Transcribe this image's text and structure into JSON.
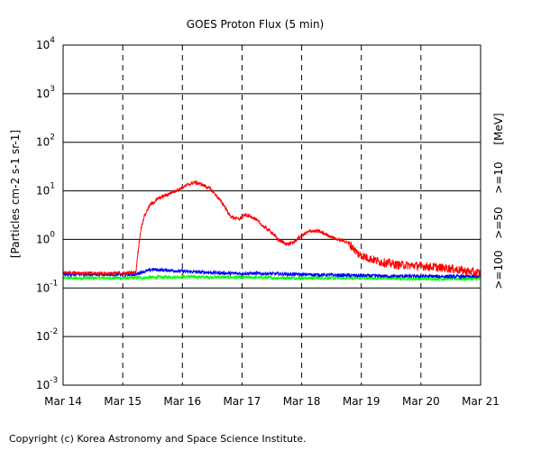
{
  "chart_data": {
    "type": "line",
    "title": "GOES Proton Flux (5 min)",
    "ylabel": "[Particles cm-2 s-1 sr-1]",
    "unit_label": "[MeV]",
    "y_scale": "log",
    "ylim": [
      0.001,
      10000
    ],
    "y_ticks": [
      {
        "base": "10",
        "exp": "4",
        "value": 10000
      },
      {
        "base": "10",
        "exp": "3",
        "value": 1000
      },
      {
        "base": "10",
        "exp": "2",
        "value": 100
      },
      {
        "base": "10",
        "exp": "1",
        "value": 10
      },
      {
        "base": "10",
        "exp": "0",
        "value": 1
      },
      {
        "base": "10",
        "exp": "-1",
        "value": 0.1
      },
      {
        "base": "10",
        "exp": "-2",
        "value": 0.01
      },
      {
        "base": "10",
        "exp": "-3",
        "value": 0.001
      }
    ],
    "x_ticks": [
      "Mar 14",
      "Mar 15",
      "Mar 16",
      "Mar 17",
      "Mar 18",
      "Mar 19",
      "Mar 20",
      "Mar 21"
    ],
    "xlim": [
      0,
      7
    ],
    "x_unit": "days since Mar 14 00:00",
    "grid": {
      "horizontal": "solid",
      "vertical": "dashed"
    },
    "series": [
      {
        "name": ">=10",
        "color": "#ff0000",
        "x": [
          0,
          0.5,
          1.0,
          1.22,
          1.26,
          1.3,
          1.35,
          1.45,
          1.6,
          1.8,
          1.95,
          2.1,
          2.2,
          2.3,
          2.45,
          2.55,
          2.7,
          2.8,
          2.95,
          3.05,
          3.2,
          3.35,
          3.5,
          3.6,
          3.75,
          3.85,
          4.0,
          4.15,
          4.3,
          4.45,
          4.6,
          4.75,
          4.85,
          4.95,
          5.1,
          5.3,
          5.6,
          5.9,
          6.2,
          6.5,
          6.8,
          7.0
        ],
        "values": [
          0.21,
          0.2,
          0.2,
          0.21,
          0.6,
          1.5,
          2.8,
          5.0,
          7.0,
          9.0,
          11.0,
          13.5,
          15.0,
          14.0,
          11.5,
          8.5,
          5.0,
          3.0,
          2.6,
          3.2,
          2.8,
          1.9,
          1.4,
          1.0,
          0.8,
          0.85,
          1.2,
          1.5,
          1.45,
          1.2,
          1.0,
          0.9,
          0.7,
          0.5,
          0.42,
          0.35,
          0.3,
          0.29,
          0.27,
          0.25,
          0.22,
          0.2
        ]
      },
      {
        "name": ">=50",
        "color": "#0000ff",
        "x": [
          0,
          1.0,
          1.22,
          1.3,
          1.5,
          1.8,
          2.0,
          2.4,
          2.8,
          3.2,
          3.6,
          4.0,
          4.5,
          5.0,
          5.5,
          6.0,
          7.0
        ],
        "values": [
          0.19,
          0.19,
          0.19,
          0.21,
          0.24,
          0.23,
          0.22,
          0.21,
          0.2,
          0.2,
          0.195,
          0.19,
          0.185,
          0.18,
          0.175,
          0.175,
          0.17
        ]
      },
      {
        "name": ">=100",
        "color": "#00ff00",
        "x": [
          0,
          1.0,
          2.0,
          3.0,
          4.0,
          5.0,
          6.0,
          7.0
        ],
        "values": [
          0.16,
          0.16,
          0.17,
          0.165,
          0.16,
          0.16,
          0.155,
          0.155
        ]
      }
    ]
  },
  "footer": {
    "copyright": "Copyright (c) Korea Astronomy and Space Science Institute."
  }
}
